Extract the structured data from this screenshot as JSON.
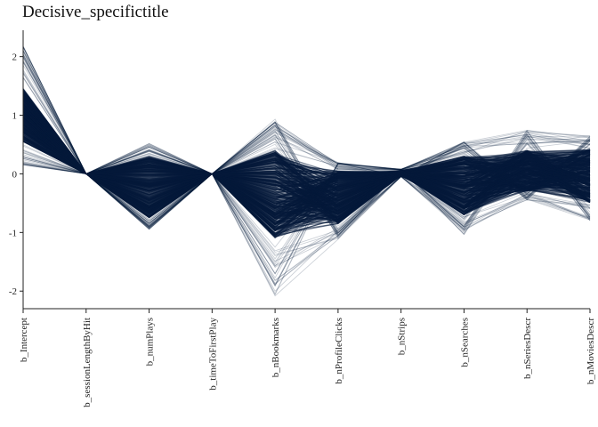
{
  "chart_data": {
    "type": "line",
    "subtype": "parallel-coordinates",
    "title": "Decisive_specifictitle",
    "categories": [
      "b_Intercept",
      "b_sessionLengthByHit",
      "b_numPlays",
      "b_timeToFirstPlay",
      "b_nBookmarks",
      "b_nProfileClicks",
      "b_nStrips",
      "b_nSearches",
      "b_nSeriesDescr",
      "b_nMoviesDescr"
    ],
    "ylim": [
      -2.3,
      2.45
    ],
    "yticks": [
      -2,
      -1,
      0,
      1,
      2
    ],
    "ytick_labels": [
      "-2",
      "-1",
      "0",
      "1",
      "2"
    ],
    "line_color": "#061a3a",
    "grid": false,
    "legend": "none",
    "band": {
      "upper": [
        2.2,
        0.0,
        0.52,
        0.0,
        0.95,
        0.2,
        0.08,
        0.55,
        0.75,
        0.65
      ],
      "lower": [
        0.15,
        0.0,
        -0.95,
        0.0,
        -2.1,
        -1.12,
        -0.05,
        -1.05,
        -0.45,
        -0.8
      ],
      "dense_upper": [
        1.45,
        0.0,
        0.3,
        0.0,
        0.4,
        0.05,
        0.06,
        0.3,
        0.4,
        0.42
      ],
      "dense_lower": [
        0.55,
        0.0,
        -0.75,
        0.0,
        -1.1,
        -0.85,
        -0.04,
        -0.7,
        -0.3,
        -0.5
      ]
    }
  }
}
